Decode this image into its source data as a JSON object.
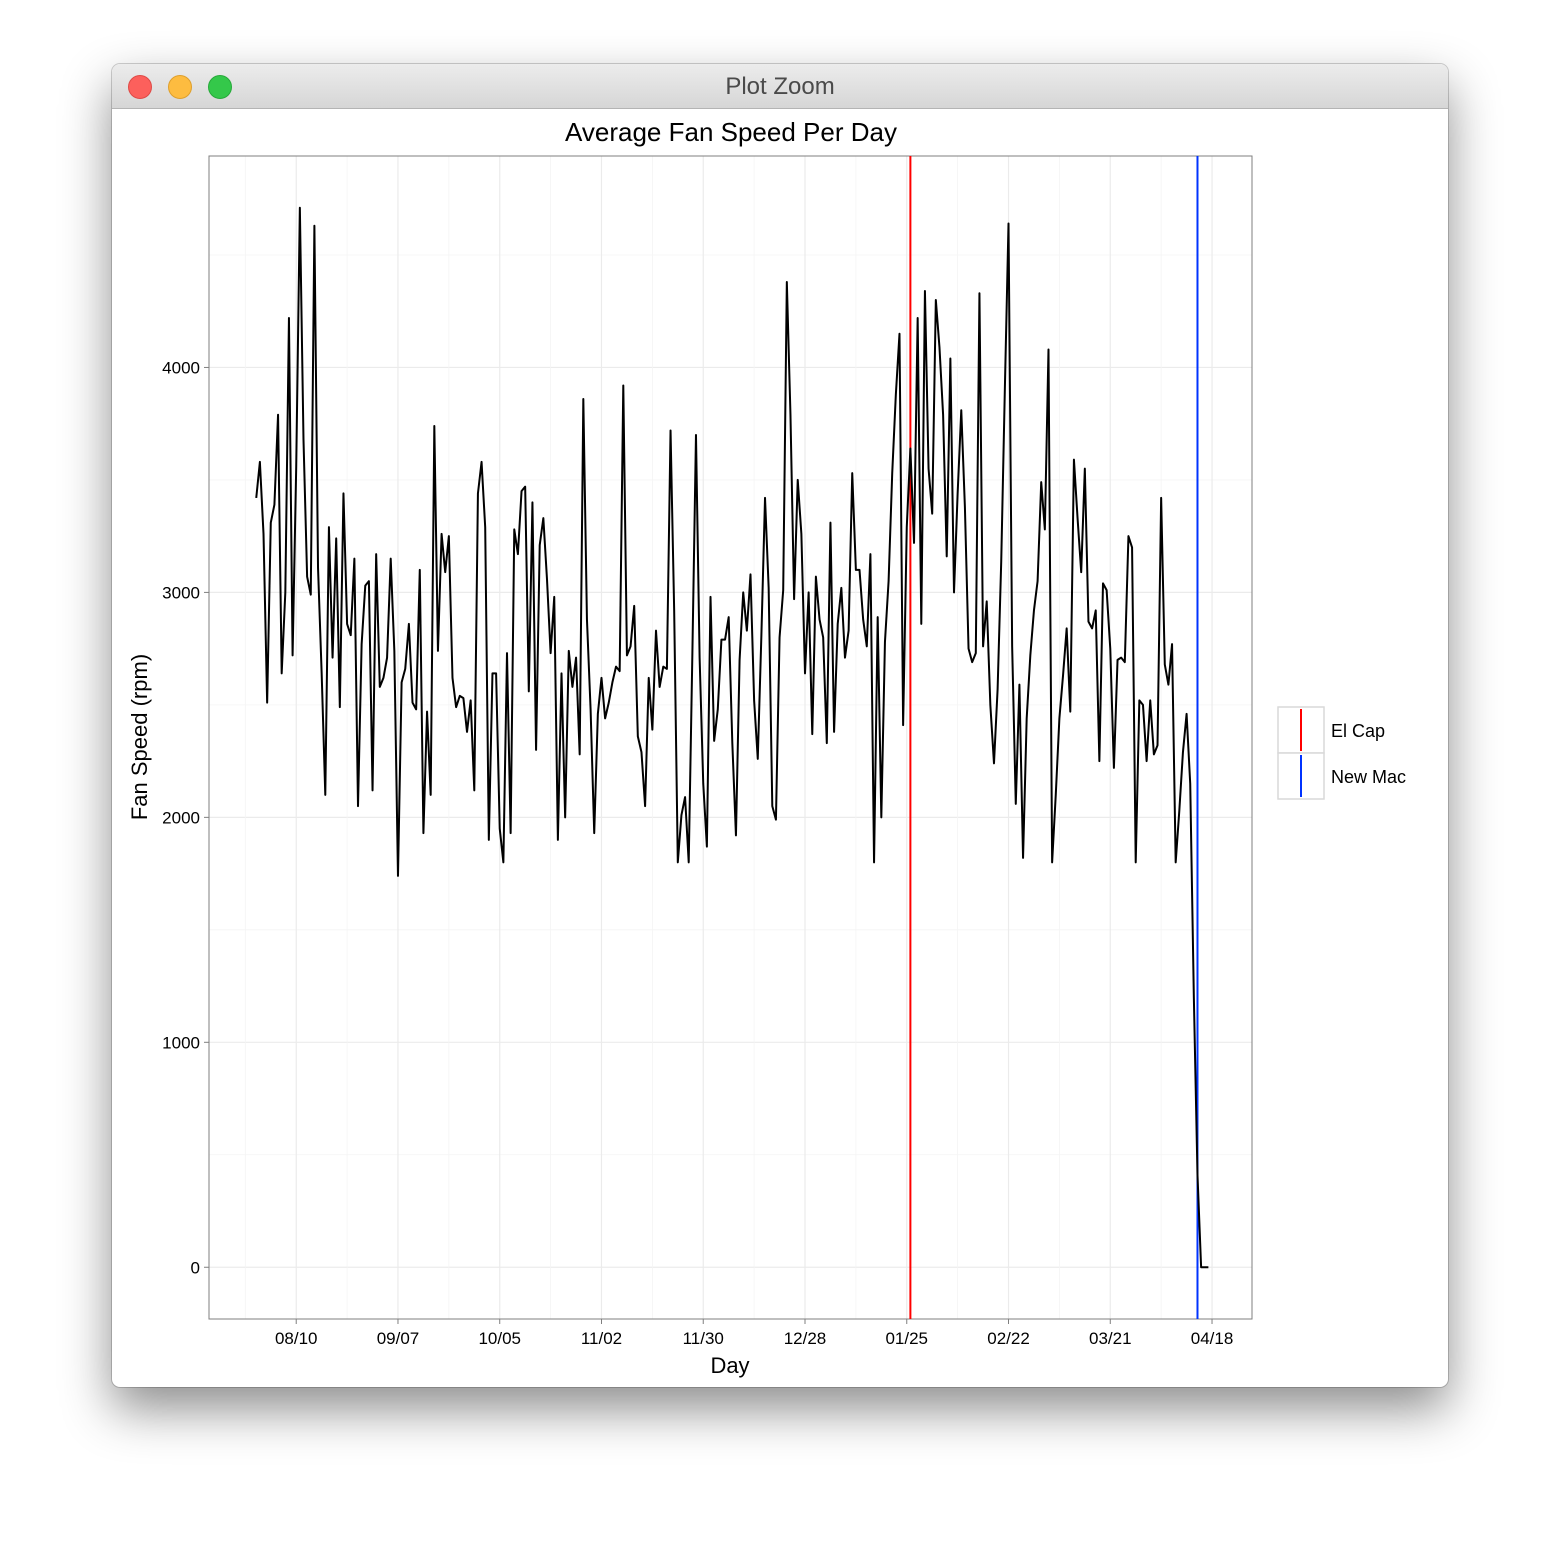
{
  "window": {
    "title": "Plot Zoom",
    "buttons": [
      "close",
      "minimize",
      "zoom"
    ]
  },
  "chart_data": {
    "type": "line",
    "title": "Average Fan Speed Per Day",
    "xlabel": "Day",
    "ylabel": "Fan Speed (rpm)",
    "x_axis_type": "date",
    "x_tick_labels": [
      "08/10",
      "09/07",
      "10/05",
      "11/02",
      "11/30",
      "12/28",
      "01/25",
      "02/22",
      "03/21",
      "04/18"
    ],
    "x_ticks": [
      "2015-08-10",
      "2015-09-07",
      "2015-10-05",
      "2015-11-02",
      "2015-11-30",
      "2015-12-28",
      "2016-01-25",
      "2016-02-22",
      "2016-03-21",
      "2016-04-18"
    ],
    "xlim": [
      "2015-07-17",
      "2016-04-29"
    ],
    "ylim": [
      -230,
      4940
    ],
    "y_ticks": [
      0,
      1000,
      2000,
      3000,
      4000
    ],
    "grid": true,
    "series": [
      {
        "start_date": "2015-07-30",
        "values": [
          3420,
          3580,
          3260,
          2510,
          3310,
          3390,
          3790,
          2640,
          3000,
          4220,
          2720,
          3560,
          4710,
          3680,
          3070,
          2990,
          4630,
          3110,
          2640,
          2100,
          3290,
          2710,
          3240,
          2490,
          3440,
          2860,
          2810,
          3150,
          2050,
          2770,
          3030,
          3050,
          2120,
          3170,
          2580,
          2620,
          2710,
          3150,
          2740,
          1740,
          2600,
          2660,
          2860,
          2510,
          2480,
          3100,
          1930,
          2470,
          2100,
          3740,
          2740,
          3260,
          3090,
          3250,
          2620,
          2490,
          2540,
          2530,
          2380,
          2520,
          2120,
          3440,
          3580,
          3290,
          1900,
          2640,
          2640,
          1950,
          1800,
          2730,
          1930,
          3280,
          3170,
          3450,
          3470,
          2560,
          3400,
          2300,
          3210,
          3330,
          3060,
          2730,
          2980,
          1900,
          2640,
          2000,
          2740,
          2580,
          2710,
          2280,
          3860,
          2880,
          2480,
          1930,
          2460,
          2620,
          2440,
          2510,
          2600,
          2670,
          2650,
          3920,
          2720,
          2760,
          2940,
          2360,
          2290,
          2050,
          2620,
          2390,
          2830,
          2580,
          2670,
          2660,
          3720,
          2920,
          1800,
          2010,
          2090,
          1800,
          2720,
          3700,
          2710,
          2150,
          1870,
          2980,
          2340,
          2480,
          2790,
          2790,
          2890,
          2330,
          1920,
          2700,
          3000,
          2830,
          3080,
          2520,
          2260,
          2810,
          3420,
          3020,
          2050,
          1990,
          2800,
          3010,
          4380,
          3790,
          2970,
          3500,
          3260,
          2640,
          3000,
          2370,
          3070,
          2880,
          2800,
          2330,
          3310,
          2380,
          2860,
          3020,
          2710,
          2830,
          3530,
          3100,
          3100,
          2880,
          2760,
          3170,
          1800,
          2890,
          2000,
          2780,
          3050,
          3530,
          3880,
          4150,
          2410,
          3290,
          3640,
          3220,
          4220,
          2860,
          4340,
          3550,
          3350,
          4300,
          4090,
          3790,
          3160,
          4040,
          3000,
          3440,
          3810,
          3380,
          2750,
          2690,
          2730,
          4330,
          2760,
          2960,
          2500,
          2240,
          2570,
          3140,
          3910,
          4640,
          2760,
          2060,
          2590,
          1820,
          2440,
          2720,
          2920,
          3050,
          3490,
          3280,
          4080,
          1800,
          2100,
          2440,
          2630,
          2840,
          2470,
          3590,
          3330,
          3090,
          3550,
          2870,
          2840,
          2920,
          2250,
          3040,
          3010,
          2750,
          2220,
          2700,
          2710,
          2690,
          3250,
          3200,
          1800,
          2520,
          2500,
          2250,
          2520,
          2280,
          2320,
          3420,
          2680,
          2590,
          2770,
          1800,
          2030,
          2290,
          2460,
          2150,
          1200,
          410,
          0,
          0,
          0
        ]
      }
    ],
    "vlines": [
      {
        "name": "El Cap",
        "date": "2016-01-26",
        "color": "#ff0000"
      },
      {
        "name": "New Mac",
        "date": "2016-04-14",
        "color": "#0033ff"
      }
    ],
    "legend": {
      "position": "right",
      "entries": [
        {
          "label": "El Cap",
          "color": "#ff0000"
        },
        {
          "label": "New Mac",
          "color": "#0033ff"
        }
      ]
    }
  }
}
